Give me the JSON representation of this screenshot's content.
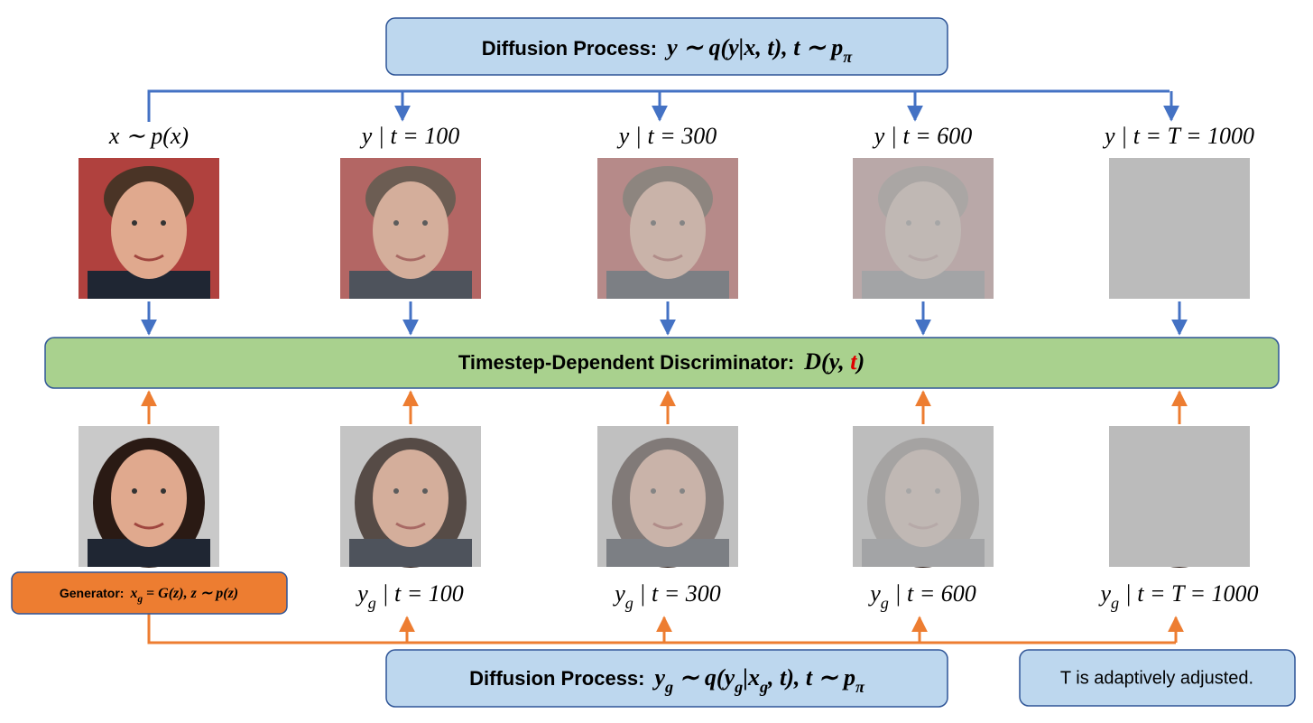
{
  "top_process": {
    "label": "Diffusion Process:",
    "formula": [
      "y ∼ q(y|x, t), t ∼ p",
      {
        "sub": "π"
      }
    ]
  },
  "real_labels": [
    [
      "x ∼ p(x)"
    ],
    [
      "y | t = 100"
    ],
    [
      "y | t = 300"
    ],
    [
      "y | t = 600"
    ],
    [
      "y | t = T = 1000"
    ]
  ],
  "discriminator": {
    "label": "Timestep-Dependent Discriminator:",
    "formula": [
      "D(y, ",
      {
        "text": "t",
        "color": "#e00000"
      },
      ")"
    ]
  },
  "generator": {
    "label": "Generator:",
    "formula": [
      "x",
      {
        "sub": "g"
      },
      " = G(z), z ∼ p(z)"
    ]
  },
  "fake_labels": [
    [
      "y",
      {
        "sub": "g"
      },
      " | t = 100"
    ],
    [
      "y",
      {
        "sub": "g"
      },
      " | t = 300"
    ],
    [
      "y",
      {
        "sub": "g"
      },
      " | t = 600"
    ],
    [
      "y",
      {
        "sub": "g"
      },
      " | t = T = 1000"
    ]
  ],
  "bottom_process": {
    "label": "Diffusion Process:",
    "formula": [
      "y",
      {
        "sub": "g"
      },
      " ∼ q(y",
      {
        "sub": "g"
      },
      "|x",
      {
        "sub": "g"
      },
      ", t), t ∼ p",
      {
        "sub": "π"
      }
    ]
  },
  "note": "T is adaptively adjusted."
}
